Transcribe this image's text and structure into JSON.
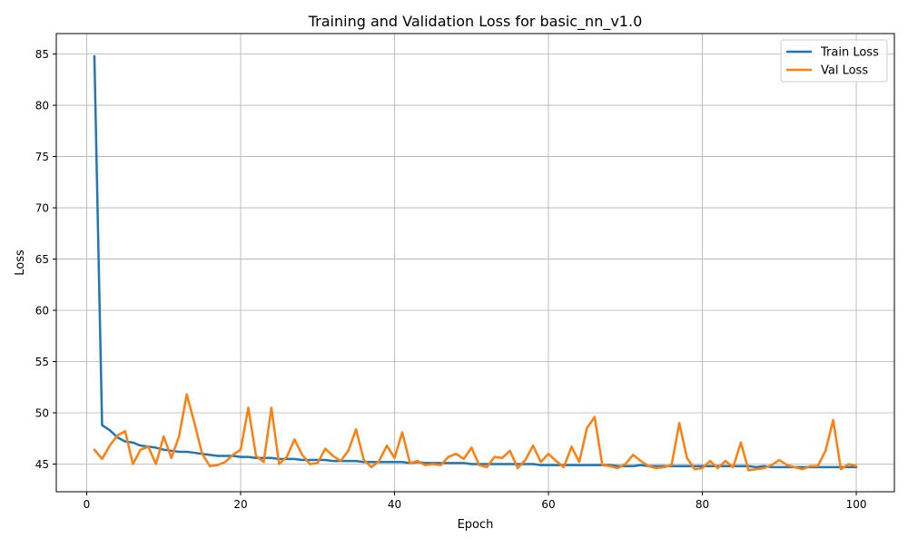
{
  "chart_data": {
    "type": "line",
    "title": "Training and Validation Loss for basic_nn_v1.0",
    "xlabel": "Epoch",
    "ylabel": "Loss",
    "xlim": [
      -3.95,
      104.95
    ],
    "ylim": [
      42.3,
      87.0
    ],
    "xticks": [
      0,
      20,
      40,
      60,
      80,
      100
    ],
    "yticks": [
      45,
      50,
      55,
      60,
      65,
      70,
      75,
      80,
      85
    ],
    "grid": true,
    "legend_position": "top-right",
    "series": [
      {
        "name": "Train Loss",
        "color": "#1f77b4",
        "x": [
          1,
          2,
          3,
          4,
          5,
          6,
          7,
          8,
          9,
          10,
          11,
          12,
          13,
          14,
          15,
          16,
          17,
          18,
          19,
          20,
          21,
          22,
          23,
          24,
          25,
          26,
          27,
          28,
          29,
          30,
          31,
          32,
          33,
          34,
          35,
          36,
          37,
          38,
          39,
          40,
          41,
          42,
          43,
          44,
          45,
          46,
          47,
          48,
          49,
          50,
          51,
          52,
          53,
          54,
          55,
          56,
          57,
          58,
          59,
          60,
          61,
          62,
          63,
          64,
          65,
          66,
          67,
          68,
          69,
          70,
          71,
          72,
          73,
          74,
          75,
          76,
          77,
          78,
          79,
          80,
          81,
          82,
          83,
          84,
          85,
          86,
          87,
          88,
          89,
          90,
          91,
          92,
          93,
          94,
          95,
          96,
          97,
          98,
          99,
          100
        ],
        "values": [
          84.8,
          48.8,
          48.3,
          47.6,
          47.2,
          47.1,
          46.8,
          46.7,
          46.6,
          46.4,
          46.3,
          46.2,
          46.2,
          46.1,
          46.0,
          45.9,
          45.8,
          45.8,
          45.8,
          45.7,
          45.7,
          45.6,
          45.6,
          45.6,
          45.5,
          45.5,
          45.5,
          45.4,
          45.4,
          45.4,
          45.4,
          45.3,
          45.3,
          45.3,
          45.3,
          45.2,
          45.2,
          45.2,
          45.2,
          45.2,
          45.2,
          45.1,
          45.2,
          45.1,
          45.1,
          45.1,
          45.1,
          45.1,
          45.1,
          45.0,
          45.0,
          45.0,
          45.0,
          45.0,
          45.0,
          45.0,
          45.0,
          45.0,
          44.9,
          44.9,
          44.9,
          44.9,
          44.9,
          44.9,
          44.9,
          44.9,
          44.9,
          44.9,
          44.8,
          44.8,
          44.8,
          44.9,
          44.8,
          44.8,
          44.8,
          44.8,
          44.8,
          44.8,
          44.8,
          44.8,
          44.8,
          44.8,
          44.8,
          44.8,
          44.8,
          44.8,
          44.7,
          44.8,
          44.7,
          44.7,
          44.7,
          44.7,
          44.7,
          44.7,
          44.7,
          44.7,
          44.7,
          44.7,
          44.7,
          44.7
        ]
      },
      {
        "name": "Val Loss",
        "color": "#ff7f0e",
        "x": [
          1,
          2,
          3,
          4,
          5,
          6,
          7,
          8,
          9,
          10,
          11,
          12,
          13,
          14,
          15,
          16,
          17,
          18,
          19,
          20,
          21,
          22,
          23,
          24,
          25,
          26,
          27,
          28,
          29,
          30,
          31,
          32,
          33,
          34,
          35,
          36,
          37,
          38,
          39,
          40,
          41,
          42,
          43,
          44,
          45,
          46,
          47,
          48,
          49,
          50,
          51,
          52,
          53,
          54,
          55,
          56,
          57,
          58,
          59,
          60,
          61,
          62,
          63,
          64,
          65,
          66,
          67,
          68,
          69,
          70,
          71,
          72,
          73,
          74,
          75,
          76,
          77,
          78,
          79,
          80,
          81,
          82,
          83,
          84,
          85,
          86,
          87,
          88,
          89,
          90,
          91,
          92,
          93,
          94,
          95,
          96,
          97,
          98,
          99,
          100
        ],
        "values": [
          46.4,
          45.5,
          46.8,
          47.8,
          48.2,
          45.0,
          46.4,
          46.7,
          45.0,
          47.7,
          45.6,
          47.7,
          51.8,
          49.0,
          46.0,
          44.8,
          44.9,
          45.2,
          45.9,
          46.4,
          50.5,
          45.8,
          45.2,
          50.5,
          45.0,
          45.7,
          47.4,
          45.9,
          45.0,
          45.1,
          46.5,
          45.8,
          45.3,
          46.3,
          48.4,
          45.4,
          44.7,
          45.3,
          46.8,
          45.6,
          48.1,
          45.1,
          45.3,
          44.9,
          45.0,
          44.9,
          45.7,
          46.0,
          45.5,
          46.6,
          44.9,
          44.7,
          45.7,
          45.6,
          46.3,
          44.6,
          45.4,
          46.8,
          45.2,
          46.0,
          45.3,
          44.7,
          46.7,
          45.2,
          48.5,
          49.6,
          44.9,
          44.8,
          44.6,
          45.0,
          45.9,
          45.3,
          44.8,
          44.6,
          44.7,
          44.9,
          49.0,
          45.6,
          44.5,
          44.6,
          45.3,
          44.6,
          45.3,
          44.7,
          47.1,
          44.4,
          44.5,
          44.6,
          44.9,
          45.4,
          44.9,
          44.7,
          44.5,
          44.8,
          44.8,
          46.3,
          49.3,
          44.5,
          45.0,
          44.8
        ]
      }
    ]
  }
}
